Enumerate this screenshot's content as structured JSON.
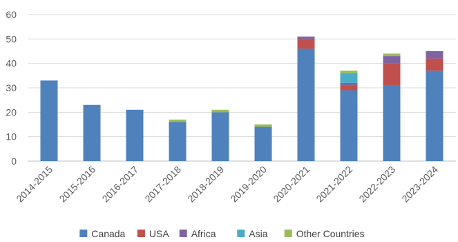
{
  "chart_data": {
    "type": "bar",
    "stacked": true,
    "title": "",
    "xlabel": "",
    "ylabel": "",
    "ylim": [
      0,
      60
    ],
    "yticks": [
      0,
      10,
      20,
      30,
      40,
      50,
      60
    ],
    "grid": true,
    "legend_position": "bottom",
    "categories": [
      "2014-2015",
      "2015-2016",
      "2016-2017",
      "2017-2018",
      "2018-2019",
      "2019-2020",
      "2020-2021",
      "2021-2022",
      "2022-2023",
      "2023-2024"
    ],
    "series": [
      {
        "name": "Canada",
        "color": "#4F81BD",
        "values": [
          33,
          23,
          21,
          16,
          20,
          14,
          46,
          29,
          31,
          37
        ]
      },
      {
        "name": "USA",
        "color": "#C0504D",
        "values": [
          0,
          0,
          0,
          0,
          0,
          0,
          4,
          2,
          9,
          5
        ]
      },
      {
        "name": "Africa",
        "color": "#8064A2",
        "values": [
          0,
          0,
          0,
          0,
          0,
          0,
          1,
          1,
          3,
          3
        ]
      },
      {
        "name": "Asia",
        "color": "#4BACC6",
        "values": [
          0,
          0,
          0,
          0,
          0,
          0,
          0,
          4,
          0,
          0
        ]
      },
      {
        "name": "Other Countries",
        "color": "#9BBB59",
        "values": [
          0,
          0,
          0,
          1,
          1,
          1,
          0,
          1,
          1,
          0
        ]
      }
    ]
  }
}
